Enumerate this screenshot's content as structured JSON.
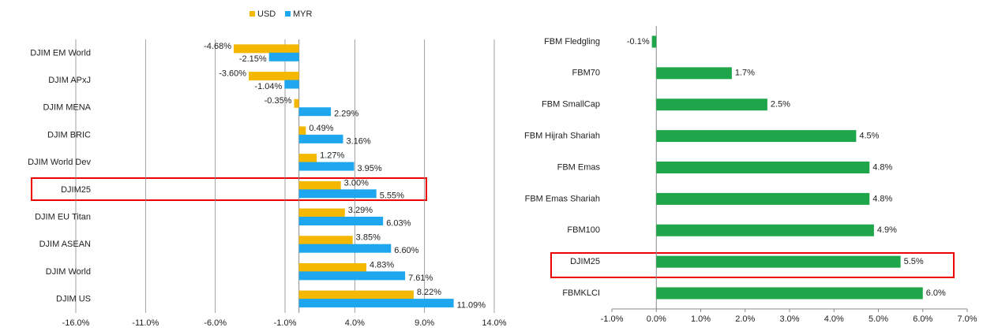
{
  "chart_data": [
    {
      "type": "hbar",
      "categories": [
        "DJIM EM World",
        "DJIM APxJ",
        "DJIM MENA",
        "DJIM BRIC",
        "DJIM World Dev",
        "DJIM25",
        "DJIM EU Titan",
        "DJIM ASEAN",
        "DJIM World",
        "DJIM US"
      ],
      "series": [
        {
          "name": "USD",
          "color": "#f5b800",
          "values": [
            -4.68,
            -3.6,
            -0.35,
            0.49,
            1.27,
            3.0,
            3.29,
            3.85,
            4.83,
            8.22
          ],
          "value_labels": [
            "-4.68%",
            "-3.60%",
            "-0.35%",
            "0.49%",
            "1.27%",
            "3.00%",
            "3.29%",
            "3.85%",
            "4.83%",
            "8.22%"
          ]
        },
        {
          "name": "MYR",
          "color": "#1ea7ef",
          "values": [
            -2.15,
            -1.04,
            2.29,
            3.16,
            3.95,
            5.55,
            6.03,
            6.6,
            7.61,
            11.09
          ],
          "value_labels": [
            "-2.15%",
            "-1.04%",
            "2.29%",
            "3.16%",
            "3.95%",
            "5.55%",
            "6.03%",
            "6.60%",
            "7.61%",
            "11.09%"
          ]
        }
      ],
      "xlim": [
        -16,
        14
      ],
      "xticks": [
        {
          "value": -16,
          "label": "-16.0%"
        },
        {
          "value": -11,
          "label": "-11.0%"
        },
        {
          "value": -6,
          "label": "-6.0%"
        },
        {
          "value": -1,
          "label": "-1.0%"
        },
        {
          "value": 4,
          "label": "4.0%"
        },
        {
          "value": 9,
          "label": "9.0%"
        },
        {
          "value": 14,
          "label": "14.0%"
        }
      ],
      "grid": true,
      "legend": "top"
    },
    {
      "type": "hbar",
      "categories": [
        "FBM Fledgling",
        "FBM70",
        "FBM SmallCap",
        "FBM Hijrah Shariah",
        "FBM Emas",
        "FBM Emas Shariah",
        "FBM100",
        "DJIM25",
        "FBMKLCI"
      ],
      "values": [
        -0.1,
        1.7,
        2.5,
        4.5,
        4.8,
        4.8,
        4.9,
        5.5,
        6.0
      ],
      "value_labels": [
        "-0.1%",
        "1.7%",
        "2.5%",
        "4.5%",
        "4.8%",
        "4.8%",
        "4.9%",
        "5.5%",
        "6.0%"
      ],
      "color": "#1fa64a",
      "xlim": [
        -1,
        7
      ],
      "xticks": [
        {
          "value": -1,
          "label": "-1.0%"
        },
        {
          "value": 0,
          "label": "0.0%"
        },
        {
          "value": 1,
          "label": "1.0%"
        },
        {
          "value": 2,
          "label": "2.0%"
        },
        {
          "value": 3,
          "label": "3.0%"
        },
        {
          "value": 4,
          "label": "4.0%"
        },
        {
          "value": 5,
          "label": "5.0%"
        },
        {
          "value": 6,
          "label": "6.0%"
        },
        {
          "value": 7,
          "label": "7.0%"
        }
      ],
      "grid": false
    }
  ]
}
